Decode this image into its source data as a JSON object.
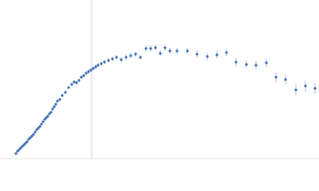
{
  "chart_data": {
    "type": "scatter",
    "x": [
      -95,
      -93,
      -91,
      -89,
      -87,
      -85,
      -83,
      -81,
      -79,
      -77,
      -75,
      -73,
      -71,
      -69,
      -67,
      -65,
      -63,
      -61,
      -59,
      -57,
      -55,
      -53,
      -51,
      -49,
      -47,
      -45,
      -43,
      -40,
      -37,
      -33,
      -29,
      -25,
      -22,
      -19,
      -16,
      -13,
      -10,
      -7,
      -4,
      -1,
      2,
      5,
      8,
      12,
      16,
      21,
      26,
      31,
      37,
      43,
      49,
      55,
      61,
      68,
      74,
      80,
      86,
      92,
      98,
      107,
      120,
      132,
      145,
      157,
      169,
      181,
      194,
      206,
      219,
      231,
      243,
      256,
      268,
      280
    ],
    "y": [
      7,
      10,
      12,
      14,
      16,
      18,
      20,
      22,
      25,
      27,
      29,
      31,
      34,
      37,
      39,
      41,
      44,
      47,
      50,
      52,
      54,
      57,
      59,
      63,
      66,
      69,
      73,
      75,
      80,
      84,
      90,
      94,
      97,
      96,
      99,
      103,
      105,
      108,
      110,
      112,
      114,
      116,
      118,
      120,
      122,
      124,
      126,
      128,
      125,
      128,
      130,
      132,
      128,
      139,
      139,
      140,
      133,
      140,
      136,
      136,
      136,
      132,
      129,
      131,
      134,
      122,
      119,
      118,
      121,
      103,
      100,
      87,
      92,
      89
    ],
    "errors": [
      1,
      1,
      1,
      1,
      1,
      1,
      1,
      1,
      1,
      1,
      1,
      1,
      1,
      1,
      1,
      1,
      1.5,
      1.5,
      1.5,
      1.5,
      1.5,
      1.5,
      1.5,
      2,
      2,
      2,
      2,
      2,
      2,
      2,
      2,
      2.5,
      2.5,
      2.5,
      2.5,
      2.5,
      2.5,
      3,
      3,
      3,
      3,
      3,
      3,
      3,
      3,
      3,
      3,
      3,
      3.5,
      3.5,
      3.5,
      3.5,
      3.5,
      4,
      4,
      4,
      4,
      4,
      4,
      4,
      4,
      4.5,
      4.5,
      4.5,
      5,
      5,
      5,
      5.5,
      5.5,
      6,
      6,
      6.5,
      7,
      7
    ],
    "color": "#3d6fb6",
    "error_color": "#a8bfe0",
    "xlim": [
      -115,
      285
    ],
    "ylim": [
      0,
      200
    ],
    "axis_lines": true
  }
}
